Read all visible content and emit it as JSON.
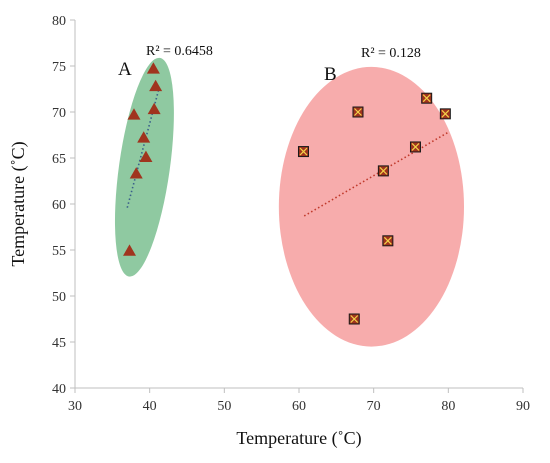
{
  "chart_data": {
    "type": "scatter",
    "xlabel": "Temperature (˚C)",
    "ylabel": "Temperature (˚C)",
    "xlim": [
      30,
      90
    ],
    "ylim": [
      40,
      80
    ],
    "xticks": [
      30,
      40,
      50,
      60,
      70,
      80,
      90
    ],
    "yticks": [
      40,
      45,
      50,
      55,
      60,
      65,
      70,
      75,
      80
    ],
    "grid": false,
    "legend": "none",
    "groups": [
      {
        "label": "A",
        "r2_text": "R² = 0.6458",
        "marker": "triangle",
        "marker_color": "#a0341e",
        "ellipse_fill": "#7fc294",
        "points": [
          {
            "x": 40.5,
            "y": 74.7
          },
          {
            "x": 40.8,
            "y": 72.8
          },
          {
            "x": 40.6,
            "y": 70.3
          },
          {
            "x": 37.9,
            "y": 69.7
          },
          {
            "x": 39.2,
            "y": 67.2
          },
          {
            "x": 39.5,
            "y": 65.1
          },
          {
            "x": 38.2,
            "y": 63.3
          },
          {
            "x": 37.3,
            "y": 54.9
          }
        ],
        "trendline": {
          "x1": 37.0,
          "y1": 59.6,
          "x2": 41.2,
          "y2": 72.4
        },
        "ellipse": {
          "cx": 39.3,
          "cy": 64.0,
          "rx": 3.4,
          "ry": 12.0,
          "rotate": 8
        }
      },
      {
        "label": "B",
        "r2_text": "R² = 0.128",
        "marker": "x-square",
        "marker_color": "#a0341e",
        "ellipse_fill": "#f6a1a1",
        "points": [
          {
            "x": 60.6,
            "y": 65.7
          },
          {
            "x": 67.9,
            "y": 70.0
          },
          {
            "x": 71.3,
            "y": 63.6
          },
          {
            "x": 75.6,
            "y": 66.2
          },
          {
            "x": 77.1,
            "y": 71.5
          },
          {
            "x": 79.6,
            "y": 69.8
          },
          {
            "x": 71.9,
            "y": 56.0
          },
          {
            "x": 67.4,
            "y": 47.5
          }
        ],
        "trendline": {
          "x1": 60.7,
          "y1": 58.7,
          "x2": 80.0,
          "y2": 67.8
        },
        "ellipse": {
          "cx": 69.7,
          "cy": 59.7,
          "rx": 12.4,
          "ry": 15.2,
          "rotate": 0
        }
      }
    ]
  }
}
